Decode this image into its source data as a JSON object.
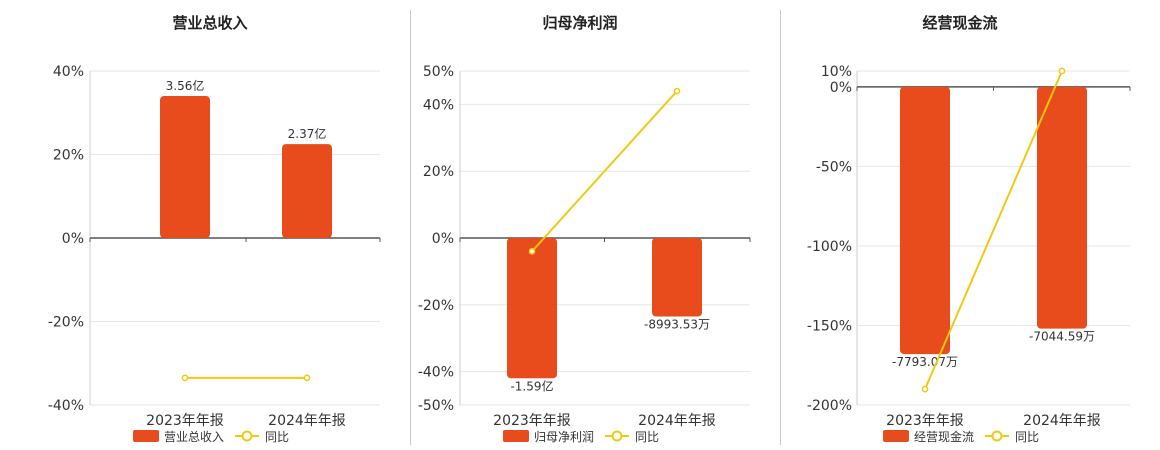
{
  "colors": {
    "bar": "#E84C1C",
    "line": "#F2C811",
    "grid": "#e6e6e6",
    "zero": "#555555"
  },
  "chart_data": [
    {
      "type": "bar",
      "title": "营业总收入",
      "categories": [
        "2023年年报",
        "2024年年报"
      ],
      "series": [
        {
          "name": "营业总收入",
          "kind": "bar",
          "values": [
            34,
            22.5
          ],
          "labels": [
            "3.56亿",
            "2.37亿"
          ]
        },
        {
          "name": "同比",
          "kind": "line",
          "values": [
            -33.5,
            -33.5
          ]
        }
      ],
      "ylim": [
        -40,
        40
      ],
      "yticks": [
        40,
        20,
        0,
        -20,
        -40
      ],
      "ytick_labels": [
        "40%",
        "20%",
        "0%",
        "-20%",
        "-40%"
      ],
      "grid": true,
      "legend": "bottom"
    },
    {
      "type": "bar",
      "title": "归母净利润",
      "categories": [
        "2023年年报",
        "2024年年报"
      ],
      "series": [
        {
          "name": "归母净利润",
          "kind": "bar",
          "values": [
            -42,
            -23.5
          ],
          "labels": [
            "-1.59亿",
            "-8993.53万"
          ]
        },
        {
          "name": "同比",
          "kind": "line",
          "values": [
            -4,
            44
          ]
        }
      ],
      "ylim": [
        -50,
        50
      ],
      "yticks": [
        50,
        40,
        20,
        0,
        -20,
        -40,
        -50
      ],
      "ytick_labels": [
        "50%",
        "40%",
        "20%",
        "0%",
        "-20%",
        "-40%",
        "-50%"
      ],
      "grid": true,
      "legend": "bottom"
    },
    {
      "type": "bar",
      "title": "经营现金流",
      "categories": [
        "2023年年报",
        "2024年年报"
      ],
      "series": [
        {
          "name": "经营现金流",
          "kind": "bar",
          "values": [
            -168,
            -152
          ],
          "labels": [
            "-7793.07万",
            "-7044.59万"
          ]
        },
        {
          "name": "同比",
          "kind": "line",
          "values": [
            -190,
            10
          ]
        }
      ],
      "ylim": [
        -200,
        10
      ],
      "yticks": [
        10,
        0,
        -50,
        -100,
        -150,
        -200
      ],
      "ytick_labels": [
        "10%",
        "0%",
        "-50%",
        "-100%",
        "-150%",
        "-200%"
      ],
      "grid": true,
      "legend": "bottom"
    }
  ]
}
